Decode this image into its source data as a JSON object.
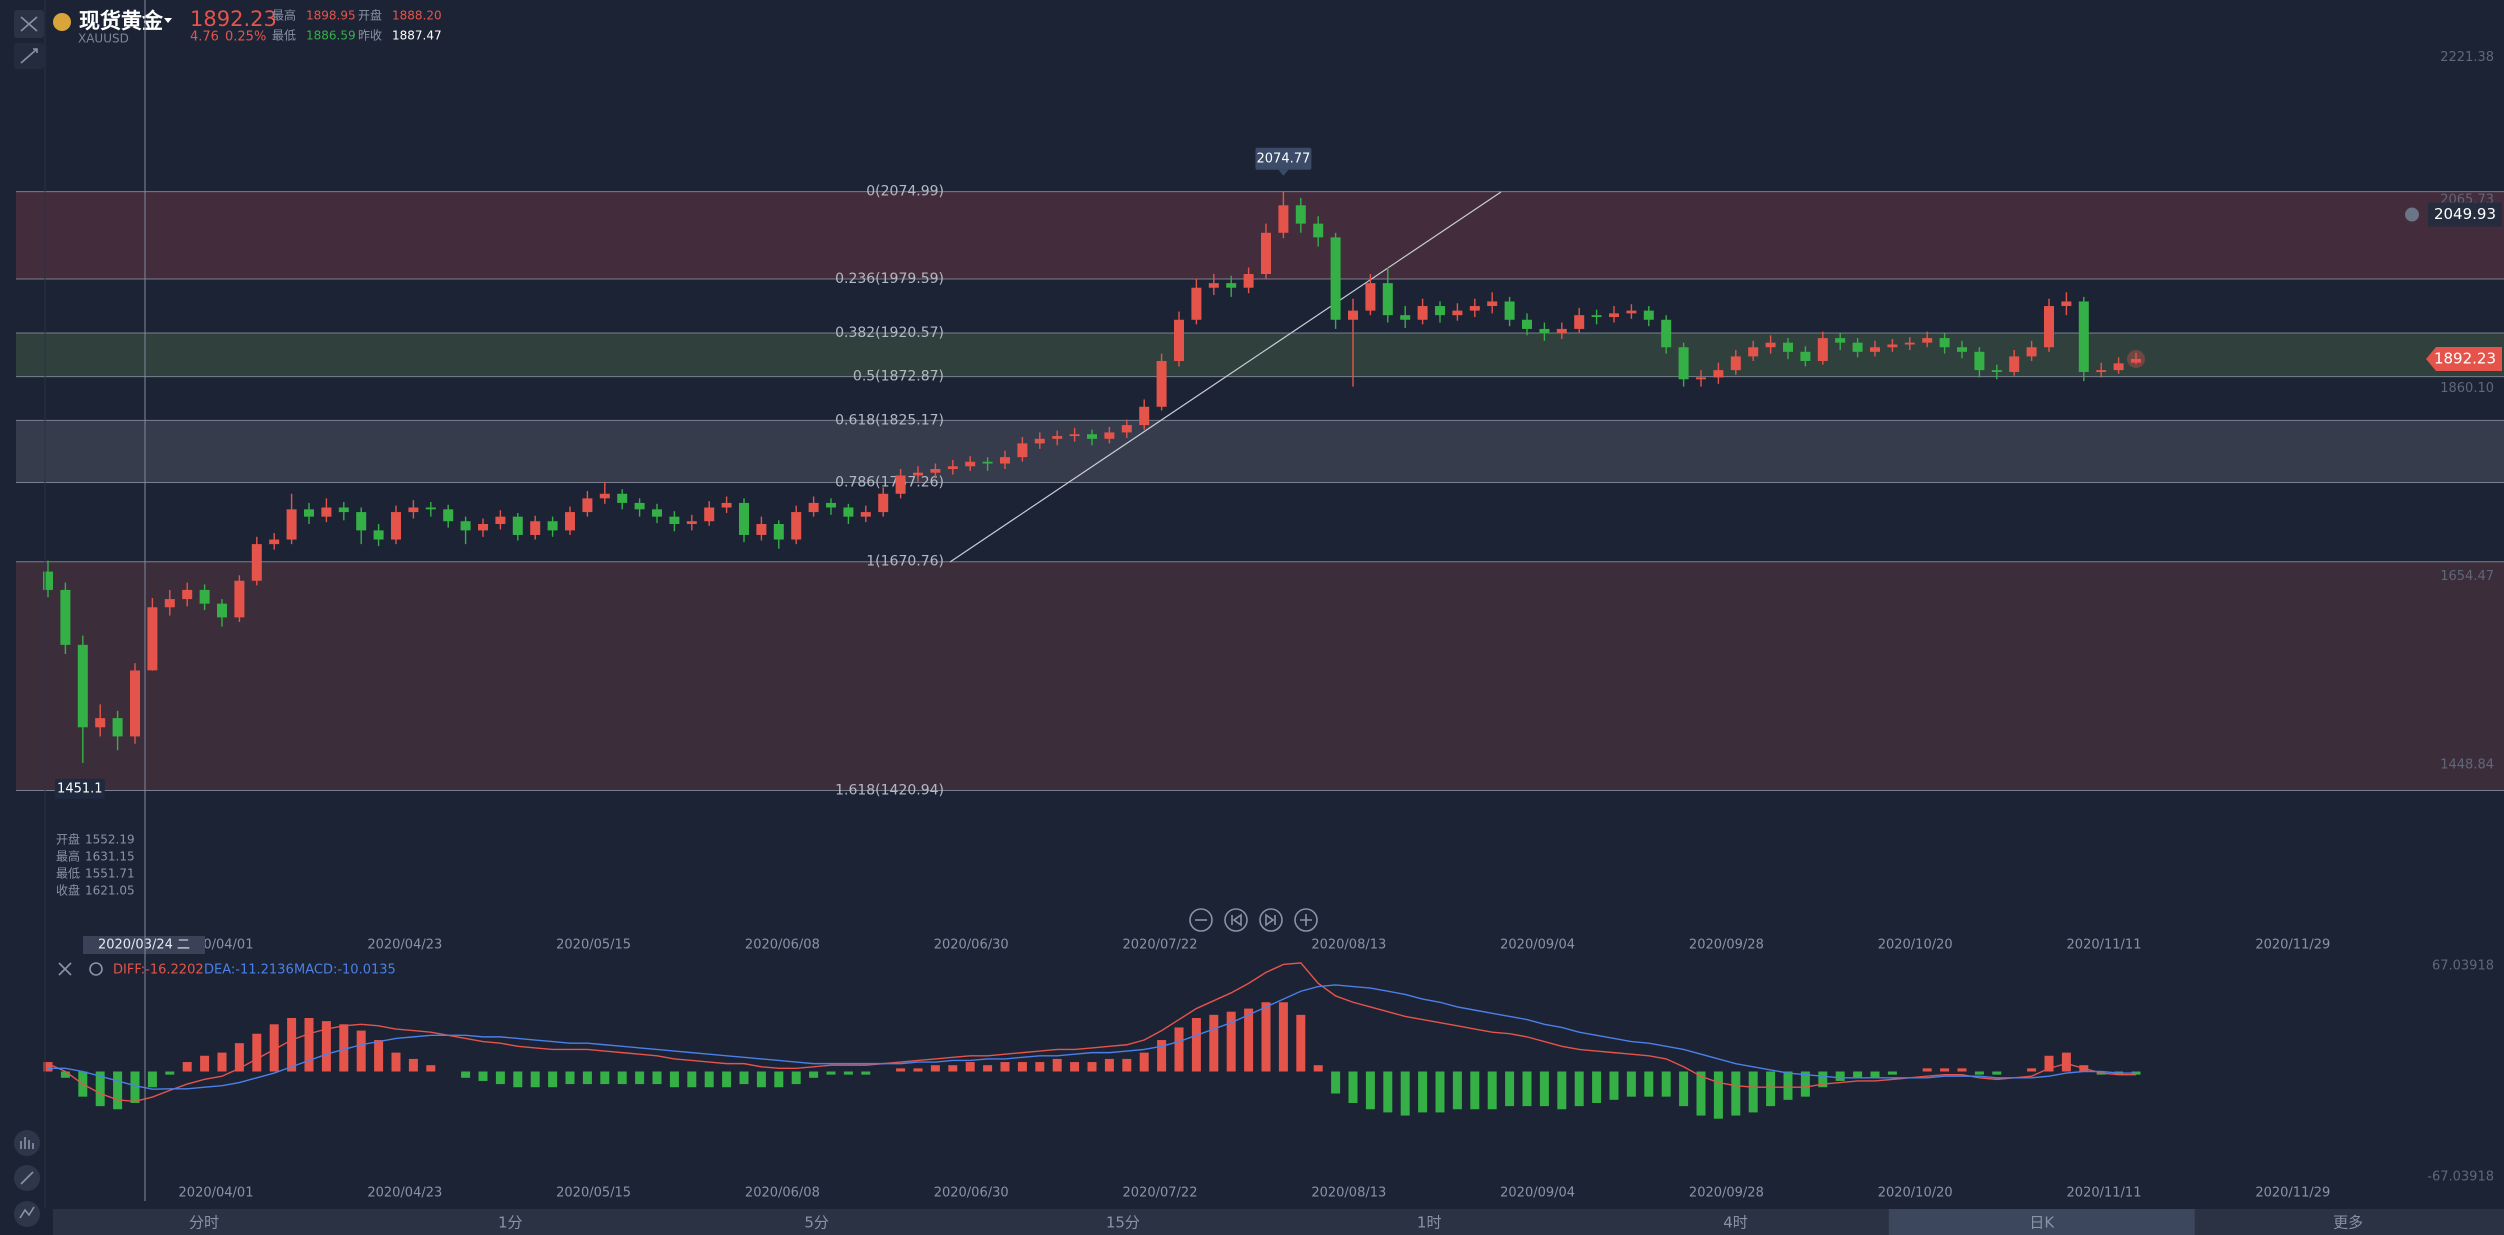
{
  "header": {
    "name": "现货黄金",
    "code": "XAUUSD",
    "price": "1892.23",
    "change": "4.76",
    "change_pct": "0.25%",
    "stats": [
      {
        "label": "最高",
        "value": "1898.95"
      },
      {
        "label": "开盘",
        "value": "1888.20"
      },
      {
        "label": "最低",
        "value": "1886.59"
      },
      {
        "label": "昨收",
        "value": "1887.47"
      }
    ]
  },
  "chart": {
    "type": "candlestick",
    "up_color": "#e5544b",
    "down_color": "#35b046",
    "ylim": [
      1257.7,
      2284.2
    ],
    "yticks": [
      2221.38,
      2065.73,
      {
        "value": 1860.1,
        "label": "1860.10"
      },
      1654.47,
      1448.84
    ],
    "fib_levels": [
      {
        "value": 2074.99,
        "label": "0(2074.99)",
        "band_color": "#7a3a48"
      },
      {
        "value": 1979.59,
        "label": "0.236(1979.59)"
      },
      {
        "value": 1920.57,
        "label": "0.382(1920.57)",
        "band_color": "#4c6a4a"
      },
      {
        "value": 1872.87,
        "label": "0.5(1872.87)"
      },
      {
        "value": 1825.17,
        "label": "0.618(1825.17)",
        "band_color": "#5a5f6e"
      },
      {
        "value": 1757.26,
        "label": "0.786(1757.26)"
      },
      {
        "value": 1670.76,
        "label": "1(1670.76)",
        "band_color": "#6a3c46"
      },
      {
        "value": 1420.94,
        "label": "1.618(1420.94)"
      }
    ],
    "alert": 2049.93,
    "dates": [
      "2020/04/01",
      "2020/04/23",
      "2020/05/15",
      "2020/06/08",
      "2020/06/30",
      "2020/07/22",
      "2020/08/13",
      "2020/09/04",
      "2020/09/28",
      "2020/10/20",
      "2020/11/11",
      "2020/11/29"
    ],
    "crosshair": {
      "date": "2020/03/24 二",
      "ohlc_labels": [
        "开盘",
        "最高",
        "最低",
        "收盘"
      ]
    },
    "candles": [
      [
        1660,
        1672,
        1632,
        1640
      ],
      [
        1640,
        1648,
        1570,
        1580
      ],
      [
        1580,
        1590,
        1451.1,
        1490
      ],
      [
        1490,
        1515,
        1480,
        1500
      ],
      [
        1500,
        1508,
        1465,
        1480
      ],
      [
        1480,
        1560,
        1472,
        1552
      ],
      [
        1552.19,
        1631.15,
        1551.71,
        1621.05
      ],
      [
        1621.05,
        1640,
        1612,
        1630
      ],
      [
        1630,
        1648,
        1622,
        1640
      ],
      [
        1640,
        1646,
        1618,
        1625
      ],
      [
        1625,
        1630,
        1600,
        1610
      ],
      [
        1610,
        1656,
        1605,
        1650
      ],
      [
        1650,
        1698,
        1645,
        1690
      ],
      [
        1690,
        1702,
        1684,
        1695
      ],
      [
        1695,
        1745,
        1690,
        1728
      ],
      [
        1728,
        1735,
        1712,
        1720
      ],
      [
        1720,
        1740,
        1714,
        1730
      ],
      [
        1730,
        1736,
        1716,
        1725
      ],
      [
        1725,
        1730,
        1690,
        1705
      ],
      [
        1705,
        1712,
        1688,
        1695
      ],
      [
        1695,
        1732,
        1690,
        1725
      ],
      [
        1725,
        1738,
        1718,
        1730
      ],
      [
        1730,
        1736,
        1720,
        1728
      ],
      [
        1728,
        1733,
        1708,
        1715
      ],
      [
        1715,
        1720,
        1690,
        1705
      ],
      [
        1705,
        1718,
        1698,
        1712
      ],
      [
        1712,
        1727,
        1706,
        1720
      ],
      [
        1720,
        1724,
        1694,
        1700
      ],
      [
        1700,
        1721,
        1695,
        1715
      ],
      [
        1715,
        1720,
        1698,
        1705
      ],
      [
        1705,
        1731,
        1700,
        1725
      ],
      [
        1725,
        1748,
        1720,
        1740
      ],
      [
        1740,
        1758,
        1734,
        1745
      ],
      [
        1745,
        1750,
        1728,
        1735
      ],
      [
        1735,
        1740,
        1720,
        1728
      ],
      [
        1728,
        1734,
        1713,
        1720
      ],
      [
        1720,
        1726,
        1704,
        1712
      ],
      [
        1712,
        1722,
        1705,
        1715
      ],
      [
        1715,
        1737,
        1710,
        1730
      ],
      [
        1730,
        1742,
        1724,
        1735
      ],
      [
        1735,
        1740,
        1692,
        1700
      ],
      [
        1700,
        1720,
        1694,
        1712
      ],
      [
        1712,
        1716,
        1685,
        1695
      ],
      [
        1695,
        1732,
        1690,
        1725
      ],
      [
        1725,
        1742,
        1720,
        1735
      ],
      [
        1735,
        1740,
        1722,
        1730
      ],
      [
        1730,
        1734,
        1712,
        1720
      ],
      [
        1720,
        1732,
        1714,
        1725
      ],
      [
        1725,
        1752,
        1720,
        1745
      ],
      [
        1745,
        1772,
        1740,
        1765
      ],
      [
        1765,
        1775,
        1758,
        1768
      ],
      [
        1768,
        1778,
        1762,
        1772
      ],
      [
        1772,
        1782,
        1766,
        1775
      ],
      [
        1775,
        1786,
        1770,
        1780
      ],
      [
        1780,
        1785,
        1770,
        1778
      ],
      [
        1778,
        1792,
        1772,
        1785
      ],
      [
        1785,
        1807,
        1780,
        1800
      ],
      [
        1800,
        1812,
        1794,
        1805
      ],
      [
        1805,
        1814,
        1798,
        1808
      ],
      [
        1808,
        1817,
        1802,
        1810
      ],
      [
        1810,
        1815,
        1798,
        1805
      ],
      [
        1805,
        1818,
        1800,
        1812
      ],
      [
        1812,
        1826,
        1806,
        1820
      ],
      [
        1820,
        1848,
        1815,
        1840
      ],
      [
        1840,
        1898,
        1836,
        1890
      ],
      [
        1890,
        1944,
        1884,
        1935
      ],
      [
        1935,
        1980,
        1930,
        1970
      ],
      [
        1970,
        1985,
        1962,
        1975
      ],
      [
        1975,
        1983,
        1960,
        1970
      ],
      [
        1970,
        1992,
        1964,
        1985
      ],
      [
        1985,
        2040,
        1980,
        2030
      ],
      [
        2030,
        2074.77,
        2024,
        2060
      ],
      [
        2060,
        2068,
        2030,
        2040
      ],
      [
        2040,
        2048,
        2015,
        2025
      ],
      [
        2025,
        2030,
        1925,
        1935
      ],
      [
        1935,
        1958,
        1862,
        1945
      ],
      [
        1945,
        1985,
        1940,
        1975
      ],
      [
        1975,
        1992,
        1932,
        1940
      ],
      [
        1940,
        1950,
        1926,
        1935
      ],
      [
        1935,
        1958,
        1930,
        1950
      ],
      [
        1950,
        1955,
        1932,
        1940
      ],
      [
        1940,
        1953,
        1934,
        1945
      ],
      [
        1945,
        1958,
        1938,
        1950
      ],
      [
        1950,
        1965,
        1942,
        1955
      ],
      [
        1955,
        1960,
        1928,
        1935
      ],
      [
        1935,
        1942,
        1918,
        1925
      ],
      [
        1925,
        1932,
        1912,
        1920
      ],
      [
        1920,
        1932,
        1914,
        1925
      ],
      [
        1925,
        1948,
        1920,
        1940
      ],
      [
        1940,
        1946,
        1930,
        1938
      ],
      [
        1938,
        1950,
        1932,
        1942
      ],
      [
        1942,
        1952,
        1936,
        1945
      ],
      [
        1945,
        1950,
        1928,
        1935
      ],
      [
        1935,
        1940,
        1898,
        1905
      ],
      [
        1905,
        1910,
        1862,
        1870
      ],
      [
        1870,
        1880,
        1862,
        1872
      ],
      [
        1872,
        1888,
        1865,
        1880
      ],
      [
        1880,
        1902,
        1875,
        1895
      ],
      [
        1895,
        1912,
        1890,
        1905
      ],
      [
        1905,
        1918,
        1898,
        1910
      ],
      [
        1910,
        1915,
        1892,
        1900
      ],
      [
        1900,
        1906,
        1884,
        1890
      ],
      [
        1890,
        1922,
        1886,
        1915
      ],
      [
        1915,
        1920,
        1902,
        1910
      ],
      [
        1910,
        1915,
        1894,
        1900
      ],
      [
        1900,
        1912,
        1895,
        1905
      ],
      [
        1905,
        1914,
        1900,
        1908
      ],
      [
        1908,
        1916,
        1902,
        1910
      ],
      [
        1910,
        1922,
        1905,
        1915
      ],
      [
        1915,
        1920,
        1898,
        1905
      ],
      [
        1905,
        1912,
        1893,
        1900
      ],
      [
        1900,
        1905,
        1872,
        1880
      ],
      [
        1880,
        1886,
        1870,
        1878
      ],
      [
        1878,
        1902,
        1874,
        1895
      ],
      [
        1895,
        1912,
        1890,
        1905
      ],
      [
        1905,
        1958,
        1900,
        1950
      ],
      [
        1950,
        1965,
        1940,
        1955
      ],
      [
        1955,
        1960,
        1868,
        1878
      ],
      [
        1878,
        1888,
        1872,
        1880
      ],
      [
        1880,
        1894,
        1876,
        1887.47
      ],
      [
        1888.2,
        1898.95,
        1886.59,
        1892.23
      ]
    ]
  },
  "macd": {
    "legend": [
      {
        "text": "DIFF:-16.2202",
        "color": "#e5544b"
      },
      {
        "text": "DEA:-11.2136",
        "color": "#4a80e8"
      },
      {
        "text": "MACD:-10.0135",
        "color": "#4a80e8"
      }
    ],
    "ylim": [
      -67.03918,
      67.03918
    ],
    "yticks": [
      67.03918,
      -67.03918
    ],
    "diff_color": "#e5544b",
    "dea_color": "#4a80e8",
    "diff": [
      5,
      0,
      -8,
      -14,
      -18,
      -19,
      -16.2202,
      -12,
      -8,
      -5,
      -3,
      2,
      8,
      14,
      20,
      24,
      27,
      29,
      30,
      29,
      27,
      26,
      25,
      23,
      21,
      19,
      18,
      16,
      15,
      14,
      14,
      14,
      13,
      12,
      11,
      10,
      8,
      7,
      6,
      5,
      5,
      3,
      2,
      2,
      3,
      4,
      4,
      4,
      5,
      6,
      7,
      8,
      9,
      10,
      10,
      11,
      12,
      13,
      14,
      14,
      15,
      16,
      17,
      20,
      26,
      33,
      40,
      45,
      50,
      56,
      63,
      68,
      69,
      56,
      48,
      44,
      41,
      38,
      35,
      33,
      31,
      29,
      27,
      25,
      24,
      22,
      19,
      16,
      14,
      13,
      12,
      11,
      10,
      8,
      3,
      -3,
      -7,
      -9,
      -10,
      -10,
      -10,
      -10,
      -8,
      -7,
      -6,
      -6,
      -5,
      -4,
      -3,
      -2,
      -2,
      -4,
      -5,
      -4,
      -3,
      2,
      5,
      2,
      -1,
      -2,
      -2
    ],
    "dea": [
      2,
      2,
      0,
      -3,
      -6,
      -9,
      -11.2136,
      -11,
      -11,
      -10,
      -9,
      -7,
      -4,
      -1,
      3,
      7,
      11,
      14,
      17,
      19,
      21,
      22,
      23,
      23,
      23,
      22,
      22,
      21,
      20,
      19,
      18,
      18,
      17,
      16,
      15,
      14,
      13,
      12,
      11,
      10,
      9,
      8,
      7,
      6,
      5,
      5,
      5,
      5,
      5,
      5,
      6,
      6,
      7,
      7,
      8,
      8,
      9,
      10,
      10,
      11,
      12,
      12,
      13,
      14,
      16,
      19,
      23,
      27,
      31,
      36,
      41,
      46,
      51,
      54,
      55,
      54,
      53,
      51,
      49,
      46,
      44,
      41,
      39,
      37,
      35,
      33,
      30,
      28,
      25,
      23,
      21,
      19,
      18,
      16,
      14,
      11,
      8,
      5,
      3,
      1,
      -1,
      -2,
      -3,
      -4,
      -4,
      -4,
      -4,
      -4,
      -4,
      -3,
      -3,
      -3,
      -4,
      -4,
      -4,
      -3,
      -1,
      0,
      0,
      -1,
      -1
    ],
    "hist": [
      6,
      -4,
      -16,
      -22,
      -24,
      -20,
      -10.0135,
      -2,
      6,
      10,
      12,
      18,
      24,
      30,
      34,
      34,
      32,
      30,
      26,
      20,
      12,
      8,
      4,
      0,
      -4,
      -6,
      -8,
      -10,
      -10,
      -10,
      -8,
      -8,
      -8,
      -8,
      -8,
      -8,
      -10,
      -10,
      -10,
      -10,
      -8,
      -10,
      -10,
      -8,
      -4,
      -2,
      -2,
      -2,
      0,
      2,
      2,
      4,
      4,
      6,
      4,
      6,
      6,
      6,
      8,
      6,
      6,
      8,
      8,
      12,
      20,
      28,
      34,
      36,
      38,
      40,
      44,
      44,
      36,
      4,
      -14,
      -20,
      -24,
      -26,
      -28,
      -26,
      -26,
      -24,
      -24,
      -24,
      -22,
      -22,
      -22,
      -24,
      -22,
      -20,
      -18,
      -16,
      -16,
      -16,
      -22,
      -28,
      -30,
      -28,
      -26,
      -22,
      -18,
      -16,
      -10,
      -6,
      -4,
      -4,
      -2,
      0,
      2,
      2,
      2,
      -2,
      -2,
      0,
      2,
      10,
      12,
      4,
      -2,
      -2,
      -2
    ]
  },
  "tabs": [
    "分时",
    "1分",
    "5分",
    "15分",
    "1时",
    "4时",
    "日K",
    "更多"
  ],
  "active_tab": 6
}
